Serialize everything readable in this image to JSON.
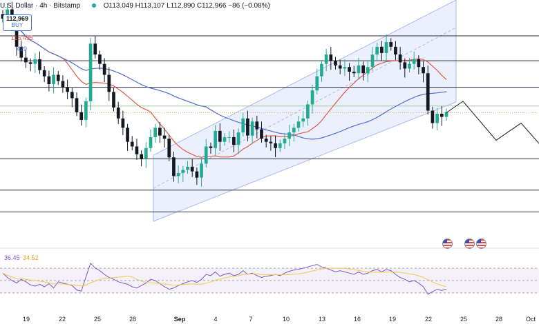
{
  "header": {
    "symbol": "U.S. Dollar · 4h · Bitstamp",
    "ohlc": "O113,049 H113,107 L112,890 C112,966 −86 (−0.08%)",
    "price_badge": "112,969",
    "buy_label": "BUY"
  },
  "ma_labels": {
    "ma_red": "115,495",
    "ma_blue": "429"
  },
  "rsi_labels": {
    "rsi": "36.45",
    "rsi_ma": "34.52"
  },
  "colors": {
    "up": "#22ab94",
    "down": "#131722",
    "ma_red": "#e05a4a",
    "ma_blue": "#4f6bd5",
    "channel": "#a9b9f2",
    "rsi_line": "#7e57c2",
    "rsi_ma": "#f2c94c",
    "horizontal": "#2a2e39"
  },
  "chart_data": {
    "type": "candlestick",
    "x_ticks": [
      "19",
      "22",
      "25",
      "28",
      "Sep",
      "4",
      "7",
      "10",
      "13",
      "16",
      "19",
      "22",
      "25",
      "28",
      "Oct"
    ],
    "horizontal_levels": [
      117900,
      116300,
      114600,
      110000,
      108000,
      106600
    ],
    "green_level": 113400,
    "dotted_level": 112966,
    "close_series": [
      119000,
      119600,
      118700,
      117200,
      116500,
      116200,
      116100,
      116400,
      115700,
      115300,
      114800,
      115400,
      115000,
      114600,
      114300,
      113900,
      113000,
      112500,
      113700,
      117400,
      116700,
      116100,
      115400,
      114300,
      113300,
      112600,
      112000,
      111100,
      110800,
      110300,
      110000,
      110700,
      111400,
      112000,
      111500,
      111300,
      110100,
      108900,
      109100,
      109300,
      109500,
      109200,
      108800,
      109700,
      110800,
      110700,
      111800,
      111100,
      111400,
      111400,
      110900,
      111700,
      112600,
      111500,
      112400,
      111900,
      111300,
      111100,
      111000,
      110700,
      111000,
      111300,
      111700,
      112000,
      112400,
      112600,
      113500,
      114400,
      115300,
      116100,
      116700,
      116300,
      116000,
      115800,
      115900,
      115600,
      115500,
      116000,
      115500,
      115900,
      116700,
      117200,
      116800,
      117500,
      117200,
      116700,
      116200,
      115800,
      116100,
      116400,
      115900,
      115500,
      113100,
      112300,
      112900,
      112700,
      113000
    ],
    "projection": [
      [
        112966,
        0
      ],
      [
        113700,
        2
      ],
      [
        111200,
        6
      ],
      [
        112300,
        9
      ],
      [
        108700,
        15
      ]
    ],
    "rsi": {
      "levels": [
        70,
        50,
        30
      ],
      "values": [
        62,
        55,
        50,
        46,
        52,
        48,
        43,
        41,
        44,
        40,
        45,
        38,
        48,
        46,
        44,
        42,
        35,
        33,
        56,
        78,
        70,
        66,
        60,
        55,
        52,
        48,
        46,
        44,
        40,
        38,
        42,
        46,
        52,
        50,
        45,
        40,
        36,
        38,
        42,
        45,
        48,
        50,
        47,
        52,
        60,
        58,
        64,
        57,
        60,
        62,
        58,
        60,
        66,
        60,
        62,
        58,
        55,
        57,
        58,
        60,
        58,
        62,
        65,
        67,
        68,
        70,
        72,
        74,
        76,
        72,
        70,
        67,
        64,
        66,
        64,
        62,
        60,
        64,
        60,
        62,
        66,
        68,
        64,
        68,
        66,
        60,
        55,
        52,
        48,
        50,
        46,
        40,
        28,
        32,
        36,
        34,
        36
      ]
    }
  }
}
